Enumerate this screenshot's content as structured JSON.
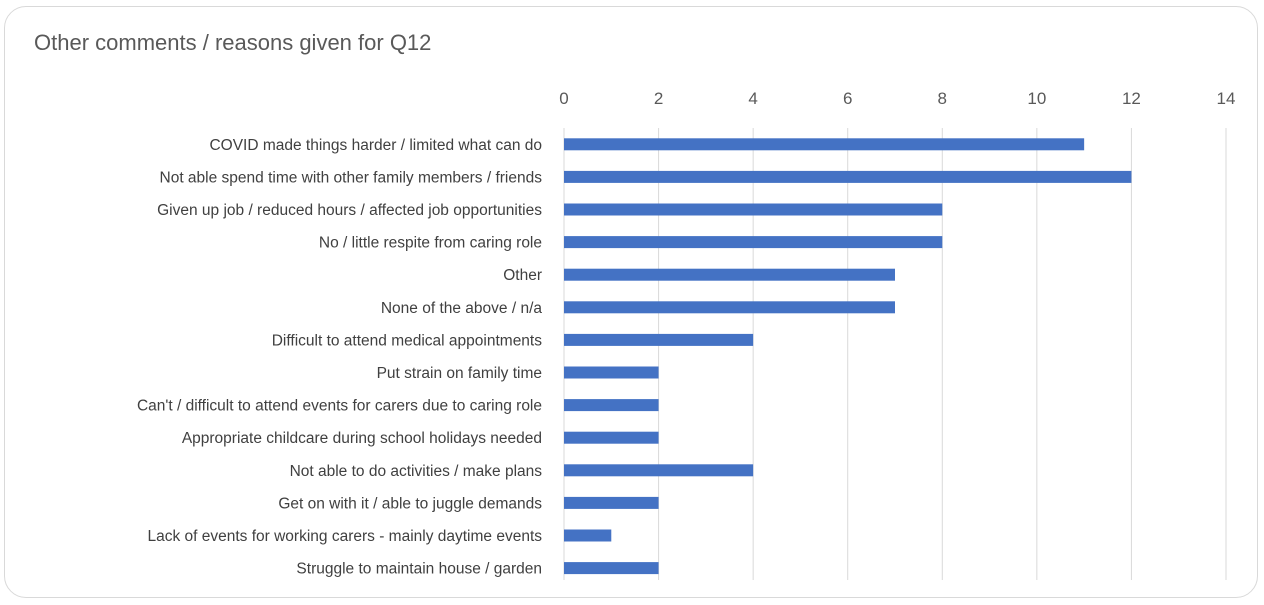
{
  "chart_data": {
    "type": "bar",
    "orientation": "horizontal",
    "title": "Other comments / reasons given for Q12",
    "categories": [
      "COVID made things harder / limited what can do",
      "Not able spend time with other family members / friends",
      "Given up job / reduced hours / affected job opportunities",
      "No / little respite from caring role",
      "Other",
      "None of the above / n/a",
      "Difficult to attend medical appointments",
      "Put strain on family time",
      "Can't / difficult to attend events for carers due to caring role",
      "Appropriate childcare during school holidays needed",
      "Not able to do activities / make plans",
      "Get on with it / able to juggle demands",
      "Lack of events for working carers - mainly daytime events",
      "Struggle to maintain house / garden"
    ],
    "values": [
      11,
      12,
      8,
      8,
      7,
      7,
      4,
      2,
      2,
      2,
      4,
      2,
      1,
      2
    ],
    "xlim": [
      0,
      14
    ],
    "xticks": [
      "0",
      "2",
      "4",
      "6",
      "8",
      "10",
      "12",
      "14"
    ],
    "axis_position": "top",
    "grid": true,
    "bar_color": "#4472c4",
    "grid_color": "#d9d9d9"
  }
}
